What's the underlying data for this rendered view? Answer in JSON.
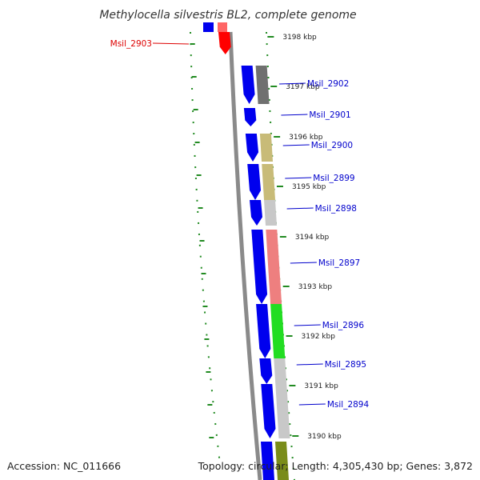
{
  "title": "Methylocella silvestris BL2, complete genome",
  "footer": {
    "accession": "Accession: NC_011666",
    "summary": "Topology: circular; Length: 4,305,430 bp; Genes: 3,872"
  },
  "colors": {
    "forward_gene": "#0000ee",
    "highlight_gene": "#ff0000",
    "label_default": "#0000cc",
    "label_highlight": "#dd0000",
    "backbone": "#8a8a8a",
    "tick": "#228b22"
  },
  "scale_ticks": [
    "3198 kbp",
    "3197 kbp",
    "3196 kbp",
    "3195 kbp",
    "3194 kbp",
    "3193 kbp",
    "3192 kbp",
    "3191 kbp",
    "3190 kbp"
  ],
  "genes": [
    {
      "label": "Msil_2903",
      "highlight": true,
      "cog_color": "#ff0000"
    },
    {
      "label": "Msil_2902",
      "highlight": false,
      "cog_color": "#707070"
    },
    {
      "label": "Msil_2901",
      "highlight": false,
      "cog_color": ""
    },
    {
      "label": "Msil_2900",
      "highlight": false,
      "cog_color": "#c8bb78"
    },
    {
      "label": "Msil_2899",
      "highlight": false,
      "cog_color": "#c8bb78"
    },
    {
      "label": "Msil_2898",
      "highlight": false,
      "cog_color": "#c8c8c8"
    },
    {
      "label": "Msil_2897",
      "highlight": false,
      "cog_color": "#ee7f7f"
    },
    {
      "label": "Msil_2896",
      "highlight": false,
      "cog_color": "#22dd22"
    },
    {
      "label": "Msil_2895",
      "highlight": false,
      "cog_color": "#c8c8c8"
    },
    {
      "label": "Msil_2894",
      "highlight": false,
      "cog_color": "#c8c8c8"
    }
  ]
}
